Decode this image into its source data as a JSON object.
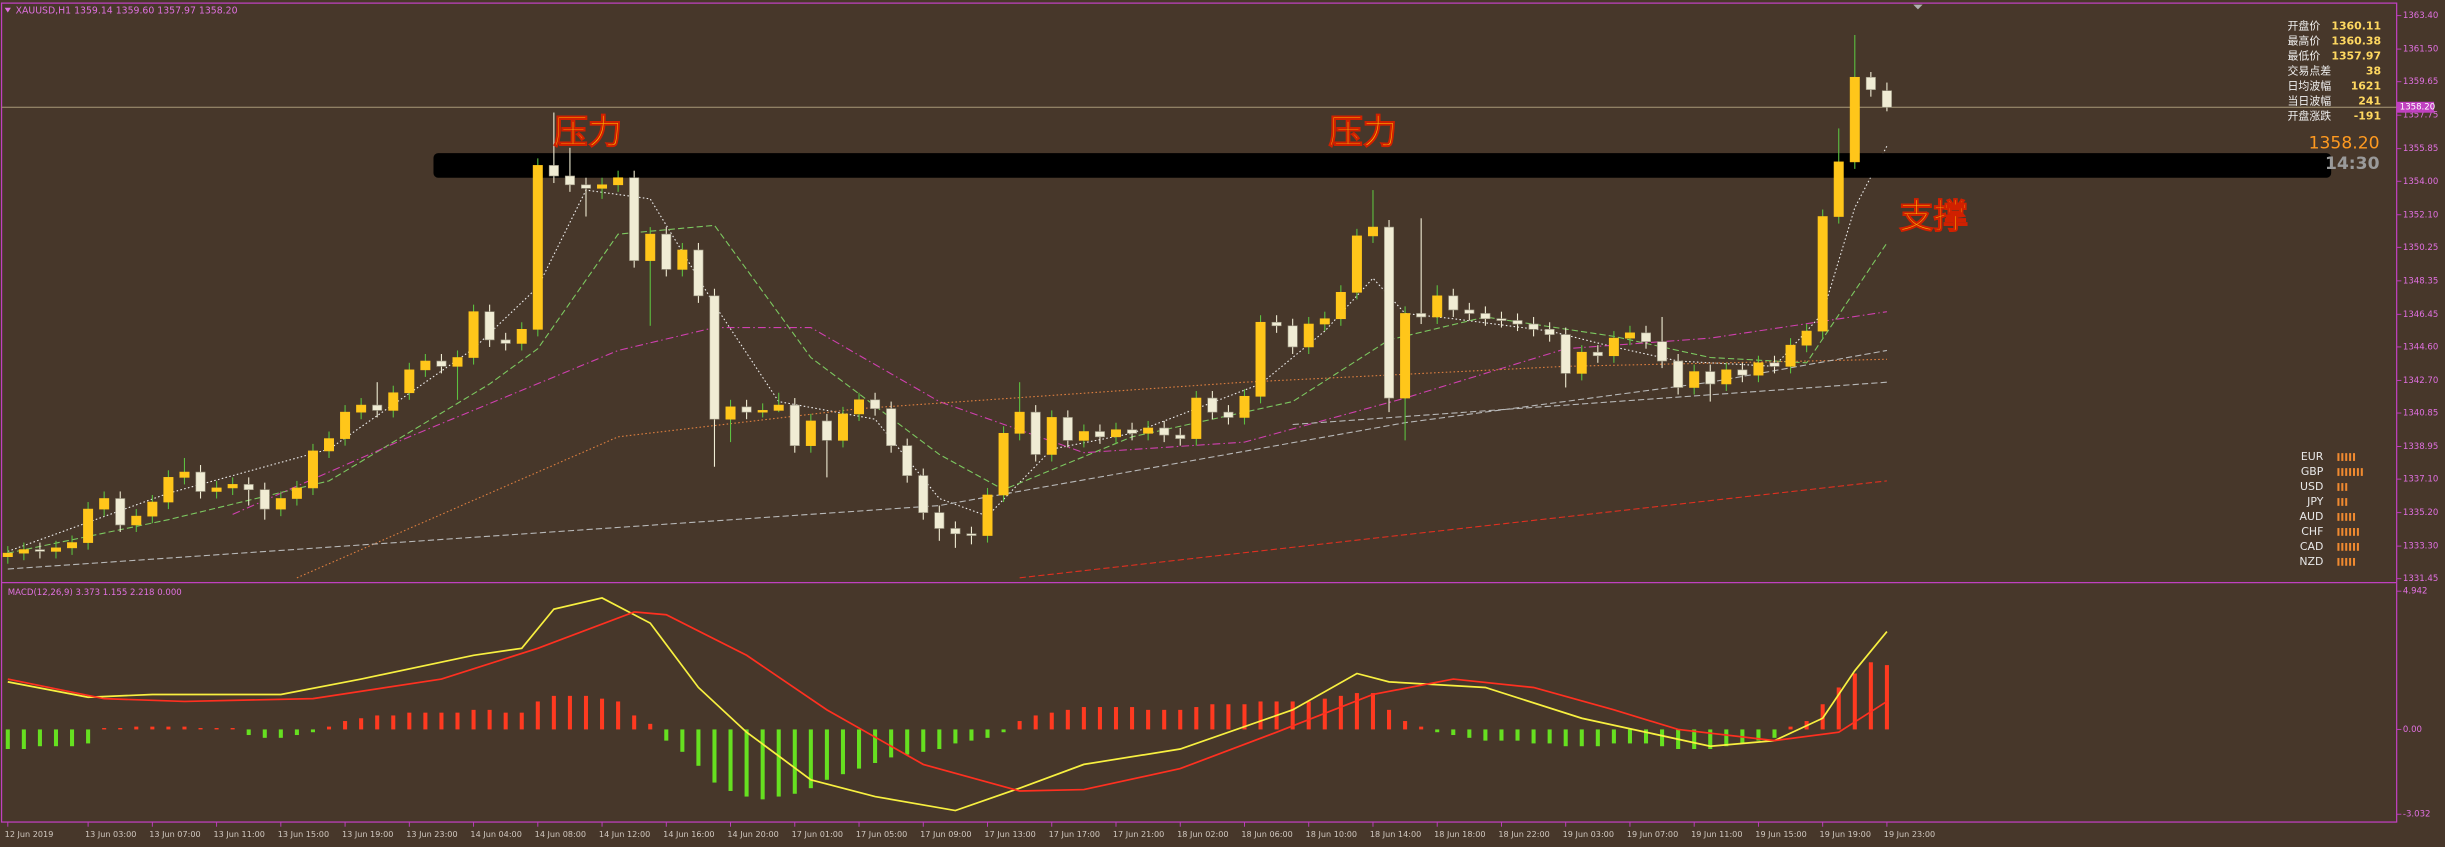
{
  "title": "XAUUSD,H1 1359.14 1359.60 1357.97 1358.20",
  "chart_data": [
    {
      "type": "candlestick",
      "up_color": "#ffc61a",
      "down_color": "#f0ecd4",
      "wick_color": "#5cc040",
      "ylim": [
        1331.45,
        1363.4
      ],
      "yticks": [
        {
          "value": 1363.4,
          "label": "1363.40"
        },
        {
          "value": 1361.5,
          "label": "1361.50"
        },
        1359.65,
        1357.75,
        1355.85,
        {
          "value": 1354.0,
          "label": "1354.00"
        },
        {
          "value": 1352.1,
          "label": "1352.10"
        },
        1350.25,
        1348.35,
        1346.45,
        {
          "value": 1344.6,
          "label": "1344.60"
        },
        {
          "value": 1342.7,
          "label": "1342.70"
        },
        1340.85,
        1338.95,
        {
          "value": 1337.1,
          "label": "1337.10"
        },
        {
          "value": 1335.2,
          "label": "1335.20"
        },
        {
          "value": 1333.3,
          "label": "1333.30"
        },
        1331.45
      ],
      "xticks": [
        {
          "value": 0,
          "label": "12 Jun 2019"
        },
        {
          "value": 5,
          "label": "13 Jun 03:00"
        },
        {
          "value": 9,
          "label": "13 Jun 07:00"
        },
        {
          "value": 13,
          "label": "13 Jun 11:00"
        },
        {
          "value": 17,
          "label": "13 Jun 15:00"
        },
        {
          "value": 21,
          "label": "13 Jun 19:00"
        },
        {
          "value": 25,
          "label": "13 Jun 23:00"
        },
        {
          "value": 29,
          "label": "14 Jun 04:00"
        },
        {
          "value": 33,
          "label": "14 Jun 08:00"
        },
        {
          "value": 37,
          "label": "14 Jun 12:00"
        },
        {
          "value": 41,
          "label": "14 Jun 16:00"
        },
        {
          "value": 45,
          "label": "14 Jun 20:00"
        },
        {
          "value": 49,
          "label": "17 Jun 01:00"
        },
        {
          "value": 53,
          "label": "17 Jun 05:00"
        },
        {
          "value": 57,
          "label": "17 Jun 09:00"
        },
        {
          "value": 61,
          "label": "17 Jun 13:00"
        },
        {
          "value": 65,
          "label": "17 Jun 17:00"
        },
        {
          "value": 69,
          "label": "17 Jun 21:00"
        },
        {
          "value": 73,
          "label": "18 Jun 02:00"
        },
        {
          "value": 77,
          "label": "18 Jun 06:00"
        },
        {
          "value": 81,
          "label": "18 Jun 10:00"
        },
        {
          "value": 85,
          "label": "18 Jun 14:00"
        },
        {
          "value": 89,
          "label": "18 Jun 18:00"
        },
        {
          "value": 93,
          "label": "18 Jun 22:00"
        },
        {
          "value": 97,
          "label": "19 Jun 03:00"
        },
        {
          "value": 101,
          "label": "19 Jun 07:00"
        },
        {
          "value": 105,
          "label": "19 Jun 11:00"
        },
        {
          "value": 109,
          "label": "19 Jun 15:00"
        },
        {
          "value": 113,
          "label": "19 Jun 19:00"
        },
        {
          "value": 117,
          "label": "19 Jun 23:00"
        }
      ],
      "open": [
        1332.7,
        1332.9,
        1333.1,
        1333.0,
        1333.2,
        1333.5,
        1335.4,
        1336.0,
        1334.5,
        1335.0,
        1335.8,
        1337.2,
        1337.5,
        1336.4,
        1336.6,
        1336.8,
        1336.5,
        1335.4,
        1336.0,
        1336.6,
        1338.7,
        1339.4,
        1340.9,
        1341.3,
        1341.0,
        1342.0,
        1343.3,
        1343.8,
        1343.5,
        1344.0,
        1346.6,
        1345.0,
        1344.8,
        1345.6,
        1354.9,
        1354.3,
        1353.8,
        1353.6,
        1353.8,
        1354.2,
        1349.5,
        1351.0,
        1349.0,
        1350.1,
        1347.5,
        1340.5,
        1341.2,
        1340.9,
        1341.0,
        1341.3,
        1339.0,
        1340.4,
        1339.3,
        1340.8,
        1341.6,
        1341.1,
        1339.0,
        1337.3,
        1335.2,
        1334.3,
        1334.0,
        1333.9,
        1336.2,
        1339.7,
        1340.9,
        1338.5,
        1340.6,
        1339.3,
        1339.8,
        1339.5,
        1339.9,
        1339.7,
        1340.0,
        1339.6,
        1339.4,
        1341.7,
        1340.9,
        1340.6,
        1341.8,
        1346.0,
        1345.8,
        1344.6,
        1345.9,
        1346.2,
        1347.7,
        1350.9,
        1351.4,
        1341.7,
        1346.5,
        1346.3,
        1347.5,
        1346.7,
        1346.5,
        1346.2,
        1346.1,
        1345.9,
        1345.6,
        1345.3,
        1343.1,
        1344.3,
        1344.1,
        1345.1,
        1345.4,
        1344.9,
        1343.8,
        1342.3,
        1343.2,
        1342.5,
        1343.3,
        1343.0,
        1343.7,
        1343.5,
        1344.7,
        1345.5,
        1352.0,
        1355.1,
        1359.9,
        1359.14
      ],
      "high": [
        1333.3,
        1333.5,
        1333.5,
        1333.6,
        1333.9,
        1335.8,
        1336.4,
        1336.4,
        1335.4,
        1336.2,
        1337.6,
        1338.3,
        1337.9,
        1337.0,
        1337.2,
        1337.2,
        1336.9,
        1336.4,
        1337.0,
        1339.1,
        1339.8,
        1341.3,
        1341.7,
        1342.6,
        1342.4,
        1343.7,
        1344.2,
        1344.2,
        1344.4,
        1347.0,
        1347.0,
        1345.4,
        1346.0,
        1355.3,
        1357.9,
        1355.9,
        1354.2,
        1354.2,
        1354.6,
        1354.6,
        1351.4,
        1351.4,
        1350.5,
        1350.5,
        1347.9,
        1341.6,
        1341.6,
        1341.4,
        1342.0,
        1341.7,
        1340.8,
        1340.8,
        1341.2,
        1342.0,
        1342.0,
        1341.5,
        1339.4,
        1337.7,
        1335.6,
        1334.7,
        1334.4,
        1336.6,
        1340.1,
        1342.6,
        1341.3,
        1341.0,
        1341.0,
        1340.2,
        1340.2,
        1340.3,
        1340.3,
        1340.4,
        1340.4,
        1340.0,
        1342.1,
        1342.1,
        1341.3,
        1342.2,
        1346.4,
        1346.4,
        1346.2,
        1346.3,
        1346.6,
        1348.1,
        1351.3,
        1353.5,
        1351.8,
        1346.9,
        1351.9,
        1348.1,
        1347.9,
        1347.1,
        1346.9,
        1346.6,
        1346.5,
        1346.3,
        1346.0,
        1345.7,
        1344.7,
        1344.7,
        1345.5,
        1345.8,
        1345.8,
        1346.3,
        1344.2,
        1343.6,
        1343.6,
        1343.7,
        1343.7,
        1344.1,
        1344.1,
        1345.1,
        1345.9,
        1352.4,
        1357.0,
        1362.3,
        1360.2,
        1359.6
      ],
      "low": [
        1332.3,
        1332.5,
        1332.6,
        1332.6,
        1332.8,
        1333.1,
        1335.0,
        1334.1,
        1334.1,
        1334.6,
        1335.4,
        1336.8,
        1336.0,
        1336.0,
        1336.2,
        1335.6,
        1334.8,
        1335.0,
        1335.6,
        1336.2,
        1338.3,
        1339.0,
        1340.5,
        1340.6,
        1340.6,
        1341.6,
        1342.9,
        1343.1,
        1341.6,
        1343.6,
        1344.6,
        1344.4,
        1344.4,
        1345.2,
        1353.9,
        1353.4,
        1352.0,
        1353.0,
        1353.4,
        1349.1,
        1345.8,
        1348.6,
        1348.6,
        1347.1,
        1337.8,
        1339.2,
        1340.5,
        1340.6,
        1340.9,
        1338.6,
        1338.6,
        1337.2,
        1338.9,
        1340.4,
        1340.7,
        1338.6,
        1336.9,
        1334.8,
        1333.6,
        1333.2,
        1333.4,
        1333.5,
        1335.8,
        1339.3,
        1338.1,
        1338.1,
        1338.9,
        1338.9,
        1339.1,
        1339.1,
        1339.3,
        1339.3,
        1339.2,
        1339.0,
        1339.0,
        1340.5,
        1340.2,
        1340.2,
        1341.4,
        1345.4,
        1344.2,
        1344.2,
        1345.5,
        1345.8,
        1347.3,
        1350.5,
        1340.9,
        1339.3,
        1345.9,
        1345.9,
        1346.3,
        1346.1,
        1345.8,
        1345.7,
        1345.5,
        1345.2,
        1344.9,
        1342.3,
        1342.7,
        1343.7,
        1343.7,
        1344.7,
        1344.5,
        1343.4,
        1341.9,
        1341.9,
        1341.5,
        1342.1,
        1342.6,
        1342.6,
        1343.1,
        1343.1,
        1344.3,
        1345.1,
        1351.6,
        1354.7,
        1358.8,
        1357.97
      ],
      "close": [
        1332.9,
        1333.1,
        1333.0,
        1333.2,
        1333.5,
        1335.4,
        1336.0,
        1334.5,
        1335.0,
        1335.8,
        1337.2,
        1337.5,
        1336.4,
        1336.6,
        1336.8,
        1336.5,
        1335.4,
        1336.0,
        1336.6,
        1338.7,
        1339.4,
        1340.9,
        1341.3,
        1341.0,
        1342.0,
        1343.3,
        1343.8,
        1343.5,
        1344.0,
        1346.6,
        1345.0,
        1344.8,
        1345.6,
        1354.9,
        1354.3,
        1353.8,
        1353.6,
        1353.8,
        1354.2,
        1349.5,
        1351.0,
        1349.0,
        1350.1,
        1347.5,
        1340.5,
        1341.2,
        1340.9,
        1341.0,
        1341.3,
        1339.0,
        1340.4,
        1339.3,
        1340.8,
        1341.6,
        1341.1,
        1339.0,
        1337.3,
        1335.2,
        1334.3,
        1334.0,
        1333.9,
        1336.2,
        1339.7,
        1340.9,
        1338.5,
        1340.6,
        1339.3,
        1339.8,
        1339.5,
        1339.9,
        1339.7,
        1340.0,
        1339.6,
        1339.4,
        1341.7,
        1340.9,
        1340.6,
        1341.8,
        1346.0,
        1345.8,
        1344.6,
        1345.9,
        1346.2,
        1347.7,
        1350.9,
        1351.4,
        1341.7,
        1346.5,
        1346.3,
        1347.5,
        1346.7,
        1346.5,
        1346.2,
        1346.1,
        1345.9,
        1345.6,
        1345.3,
        1343.1,
        1344.3,
        1344.1,
        1345.1,
        1345.4,
        1344.9,
        1343.8,
        1342.3,
        1343.2,
        1342.5,
        1343.3,
        1343.0,
        1343.7,
        1343.5,
        1344.7,
        1345.5,
        1352.0,
        1355.1,
        1359.9,
        1359.2,
        1358.2
      ],
      "lines": [
        {
          "color": "#f0f0f0",
          "style": "dotted",
          "x": [
            0,
            10,
            20,
            29,
            33,
            36,
            40,
            44,
            48,
            54,
            58,
            61,
            65,
            70,
            78,
            82,
            85,
            87,
            90,
            96,
            100,
            104,
            110,
            113,
            115,
            117
          ],
          "values": [
            1333.0,
            1336.3,
            1338.8,
            1344.5,
            1348.0,
            1353.5,
            1353.0,
            1347.0,
            1341.5,
            1340.5,
            1336.0,
            1335.0,
            1338.8,
            1339.7,
            1342.5,
            1345.5,
            1348.5,
            1346.5,
            1346.2,
            1345.5,
            1344.6,
            1343.8,
            1343.5,
            1346.5,
            1352.5,
            1356.0
          ]
        },
        {
          "color": "#7cc860",
          "style": "dashed",
          "x": [
            0,
            10,
            20,
            30,
            33,
            38,
            44,
            50,
            58,
            62,
            70,
            80,
            86,
            92,
            100,
            106,
            112,
            117
          ],
          "values": [
            1332.9,
            1334.8,
            1337.0,
            1342.5,
            1344.5,
            1351.0,
            1351.5,
            1344.0,
            1338.5,
            1336.5,
            1339.5,
            1341.5,
            1345.0,
            1346.3,
            1345.2,
            1344.0,
            1343.7,
            1350.5
          ]
        },
        {
          "color": "#d040b0",
          "style": "dashdot",
          "x": [
            14,
            25,
            38,
            44,
            50,
            58,
            67,
            77,
            87,
            97,
            106,
            117
          ],
          "values": [
            1335.1,
            1339.5,
            1344.4,
            1345.7,
            1345.7,
            1341.5,
            1338.6,
            1339.2,
            1341.7,
            1344.5,
            1345.1,
            1346.6
          ]
        },
        {
          "color": "#e08040",
          "style": "dotted",
          "x": [
            18,
            38,
            53,
            77,
            97,
            117
          ],
          "values": [
            1331.5,
            1339.5,
            1341.1,
            1342.6,
            1343.5,
            1343.9
          ]
        },
        {
          "color": "#b8b8b8",
          "style": "dashed",
          "x": [
            0,
            29,
            58,
            87,
            106,
            117
          ],
          "values": [
            1332.0,
            1333.8,
            1335.6,
            1340.3,
            1342.6,
            1344.4
          ]
        },
        {
          "color": "#b8b8b8",
          "style": "dashed",
          "x": [
            80,
            97,
            117
          ],
          "values": [
            1340.2,
            1341.3,
            1342.6
          ]
        },
        {
          "color": "#e03020",
          "style": "dashed",
          "x": [
            63,
            117
          ],
          "values": [
            1331.5,
            1337.0
          ]
        }
      ],
      "zone": [
        1354.2,
        1355.6
      ],
      "bid": {
        "value": 1358.2,
        "label": "1358.20"
      },
      "annotations": [
        "压力",
        "压力",
        "支撑",
        "14:30"
      ]
    },
    {
      "type": "macd",
      "label": "MACD(12,26,9) 3.373 1.155 2.218 0.000",
      "ylim": [
        -3.032,
        4.942
      ],
      "yticks": [
        4.942,
        {
          "value": 0,
          "label": "0.00"
        },
        -3.032
      ],
      "up_color": "#ff3a20",
      "down_color": "#66e020",
      "histogram": [
        -0.7,
        -0.7,
        -0.6,
        -0.6,
        -0.6,
        -0.5,
        0.05,
        0.05,
        0.1,
        0.1,
        0.1,
        0.1,
        0.05,
        0.05,
        0.05,
        -0.2,
        -0.3,
        -0.3,
        -0.2,
        -0.1,
        0.1,
        0.3,
        0.4,
        0.5,
        0.5,
        0.6,
        0.6,
        0.6,
        0.6,
        0.7,
        0.7,
        0.6,
        0.6,
        1.0,
        1.2,
        1.2,
        1.2,
        1.1,
        1.0,
        0.5,
        0.2,
        -0.4,
        -0.8,
        -1.3,
        -1.9,
        -2.2,
        -2.4,
        -2.5,
        -2.4,
        -2.3,
        -2.1,
        -1.8,
        -1.6,
        -1.4,
        -1.2,
        -1.0,
        -0.9,
        -0.8,
        -0.7,
        -0.5,
        -0.4,
        -0.3,
        -0.1,
        0.3,
        0.5,
        0.6,
        0.7,
        0.8,
        0.8,
        0.8,
        0.8,
        0.7,
        0.7,
        0.7,
        0.8,
        0.9,
        0.9,
        0.9,
        1.0,
        1.0,
        1.0,
        1.0,
        1.1,
        1.2,
        1.3,
        1.3,
        0.7,
        0.3,
        0.1,
        -0.1,
        -0.2,
        -0.3,
        -0.4,
        -0.4,
        -0.4,
        -0.5,
        -0.5,
        -0.6,
        -0.6,
        -0.6,
        -0.5,
        -0.5,
        -0.5,
        -0.6,
        -0.7,
        -0.7,
        -0.7,
        -0.6,
        -0.5,
        -0.4,
        -0.3,
        0.1,
        0.3,
        0.9,
        1.5,
        2.0,
        2.4,
        2.3
      ],
      "series": [
        {
          "color": "#f8f040",
          "x": [
            0,
            5,
            9,
            17,
            22,
            29,
            32,
            34,
            37,
            40,
            43,
            46,
            50,
            54,
            59,
            63,
            67,
            73,
            80,
            84,
            86,
            92,
            98,
            102,
            106,
            110,
            113,
            115,
            117
          ],
          "values": [
            1.7,
            1.15,
            1.25,
            1.25,
            1.8,
            2.65,
            2.9,
            4.3,
            4.7,
            3.8,
            1.5,
            -0.1,
            -1.8,
            -2.4,
            -2.9,
            -2.1,
            -1.25,
            -0.7,
            0.7,
            2.0,
            1.7,
            1.5,
            0.4,
            -0.1,
            -0.6,
            -0.4,
            0.4,
            2.1,
            3.5
          ]
        },
        {
          "color": "#ff3020",
          "x": [
            0,
            6,
            11,
            19,
            27,
            33,
            39,
            41,
            46,
            51,
            57,
            63,
            67,
            73,
            79,
            85,
            90,
            95,
            100,
            104,
            110,
            114,
            117
          ],
          "values": [
            1.8,
            1.1,
            1.0,
            1.1,
            1.8,
            2.9,
            4.2,
            4.1,
            2.65,
            0.7,
            -1.25,
            -2.2,
            -2.15,
            -1.4,
            -0.1,
            1.25,
            1.8,
            1.5,
            0.7,
            0,
            -0.4,
            -0.1,
            1.0
          ]
        }
      ]
    }
  ],
  "info_panel": [
    {
      "label": "开盘价",
      "value": 1360.11
    },
    {
      "label": "最高价",
      "value": 1360.38
    },
    {
      "label": "最低价",
      "value": 1357.97
    },
    {
      "label": "交易点差",
      "value": 38
    },
    {
      "label": "日均波幅",
      "value": 1621
    },
    {
      "label": "当日波幅",
      "value": 241
    },
    {
      "label": "开盘涨跌",
      "value": -191
    }
  ],
  "currency_strength": [
    {
      "label": "EUR",
      "value": 5
    },
    {
      "label": "GBP",
      "value": 7
    },
    {
      "label": "USD",
      "value": 3
    },
    {
      "label": "JPY",
      "value": 3
    },
    {
      "label": "AUD",
      "value": 5
    },
    {
      "label": "CHF",
      "value": 6
    },
    {
      "label": "CAD",
      "value": 6
    },
    {
      "label": "NZD",
      "value": 5
    }
  ]
}
